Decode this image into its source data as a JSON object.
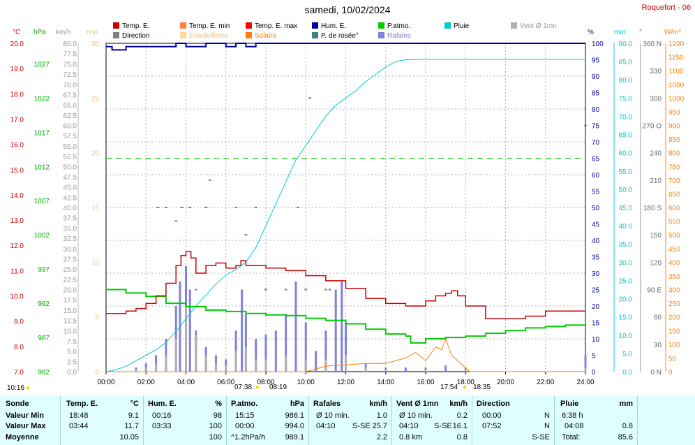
{
  "title": "samedi, 10/02/2024",
  "station": "Roquefort - 06",
  "legend": [
    {
      "label": "Temp. E.",
      "color": "#cc0000"
    },
    {
      "label": "Temp. E. min",
      "color": "#ff8040"
    },
    {
      "label": "Temp. E. max",
      "color": "#ff0000"
    },
    {
      "label": "Hum. E.",
      "color": "#0000a0"
    },
    {
      "label": "P.atmo.",
      "color": "#00cc00"
    },
    {
      "label": "Pluie",
      "color": "#00cccc"
    },
    {
      "label": "Vent Ø 1mn",
      "color": "#b0b0b0"
    },
    {
      "label": "Direction",
      "color": "#808080"
    },
    {
      "label": "Ensoleilleme",
      "color": "#ffd8a0"
    },
    {
      "label": "Solaire",
      "color": "#ff8000"
    },
    {
      "label": "P. de rosée°",
      "color": "#408080"
    },
    {
      "label": "Rafales",
      "color": "#8080e0"
    }
  ],
  "units": {
    "temp": "°C",
    "press": "hPa",
    "wind": "km/h",
    "min": "min",
    "hum": "%",
    "rain": "mm",
    "dir": "°",
    "solar": "W/m²"
  },
  "chart_data": {
    "type": "line",
    "xlabel": "",
    "x_ticks": [
      "00:00",
      "02:00",
      "04:00",
      "06:00",
      "08:00",
      "10:00",
      "12:00",
      "14:00",
      "16:00",
      "18:00",
      "20:00",
      "22:00",
      "24:00"
    ],
    "axes": {
      "temp_c": {
        "range": [
          7.0,
          20.0
        ],
        "ticks": [
          "7.0",
          "8.0",
          "9.0",
          "10.0",
          "11.0",
          "12.0",
          "13.0",
          "14.0",
          "15.0",
          "16.0",
          "17.0",
          "18.0",
          "19.0",
          "20.0"
        ]
      },
      "pressure_hpa": {
        "range": [
          982,
          1030
        ],
        "ticks": [
          "982",
          "987",
          "992",
          "997",
          "1002",
          "1007",
          "1012",
          "1017",
          "1022",
          "1027"
        ]
      },
      "wind_kmh": {
        "range": [
          0,
          80
        ],
        "step": 2.5
      },
      "sun_min": {
        "range": [
          0,
          30
        ],
        "ticks": [
          "0",
          "5",
          "10",
          "15",
          "20",
          "25",
          "30"
        ]
      },
      "humidity_pct": {
        "range": [
          0,
          100
        ],
        "step": 5
      },
      "rain_mm": {
        "range": [
          0,
          90
        ],
        "step": 5
      },
      "direction_deg": {
        "range": [
          0,
          360
        ],
        "ticks": [
          "0 N",
          "30",
          "60",
          "90 E",
          "120",
          "150",
          "180 S",
          "210",
          "240",
          "270 O",
          "300",
          "330",
          "360 N"
        ]
      },
      "solar_wm2": {
        "range": [
          0,
          1200
        ],
        "step": 50
      }
    },
    "series": [
      {
        "name": "Temp. E.",
        "axis": "temp_c",
        "x": [
          0,
          0.5,
          1,
          1.5,
          2,
          2.5,
          3,
          3.5,
          3.75,
          4,
          4.25,
          4.5,
          5,
          5.5,
          6,
          6.5,
          6.75,
          7,
          7.5,
          8,
          9,
          10,
          11,
          12,
          13,
          14,
          15,
          16,
          16.5,
          17,
          17.3,
          17.6,
          18,
          19,
          20,
          21,
          22,
          23,
          24
        ],
        "y": [
          9.3,
          9.3,
          9.4,
          9.5,
          9.7,
          10.0,
          10.5,
          11.2,
          11.6,
          11.75,
          11.5,
          10.9,
          11.2,
          11.3,
          11.1,
          11.2,
          11.4,
          11.2,
          11.2,
          11.1,
          11.0,
          10.8,
          10.6,
          10.3,
          9.9,
          9.7,
          9.6,
          9.8,
          10.0,
          10.1,
          10.2,
          10.0,
          9.6,
          9.1,
          9.1,
          9.2,
          9.4,
          9.4,
          9.4
        ]
      },
      {
        "name": "Hum. E.",
        "axis": "humidity_pct",
        "x": [
          0,
          0.3,
          1,
          2,
          3,
          3.5,
          4,
          5,
          6,
          6.5,
          7,
          7.5,
          8,
          10,
          12,
          14,
          16,
          18,
          20,
          22,
          24
        ],
        "y": [
          99,
          98,
          99,
          99,
          99,
          100,
          99,
          100,
          99,
          100,
          99,
          100,
          100,
          100,
          100,
          100,
          100,
          100,
          100,
          100,
          100
        ]
      },
      {
        "name": "P.atmo.",
        "axis": "pressure_hpa",
        "x": [
          0,
          1,
          2,
          3,
          4,
          5,
          6,
          7,
          8,
          9,
          10,
          11,
          12,
          13,
          14,
          15,
          15.25,
          16,
          17,
          18,
          19,
          20,
          21,
          22,
          23,
          24
        ],
        "y": [
          994.0,
          993.5,
          993.0,
          992.0,
          991.5,
          991.0,
          990.8,
          990.5,
          990.3,
          990.2,
          989.8,
          989.5,
          989.0,
          988.2,
          987.5,
          987.2,
          986.2,
          986.8,
          987.0,
          987.2,
          987.6,
          988.0,
          988.4,
          988.6,
          988.8,
          989.0
        ]
      },
      {
        "name": "Pluie",
        "axis": "rain_mm",
        "x": [
          0,
          0.5,
          1,
          1.5,
          2,
          2.5,
          3,
          3.5,
          4,
          4.5,
          5,
          5.5,
          6,
          6.5,
          7,
          7.5,
          8,
          8.5,
          9,
          9.5,
          10,
          10.5,
          11,
          11.5,
          12,
          12.5,
          13,
          13.5,
          14,
          14.5,
          15,
          16,
          18,
          20,
          24
        ],
        "y": [
          0,
          0.5,
          1.5,
          3,
          4.5,
          6,
          8,
          11,
          14.5,
          18,
          21,
          24,
          26.5,
          28,
          30,
          34,
          40,
          46,
          52,
          58,
          62,
          66,
          70,
          73,
          75,
          77,
          79.5,
          81.5,
          83.5,
          85,
          85.5,
          85.6,
          85.6,
          85.6,
          85.6
        ]
      },
      {
        "name": "Rafales",
        "axis": "wind_kmh",
        "x": [
          1.5,
          2,
          2.5,
          3,
          3.5,
          3.7,
          4,
          4.2,
          4.5,
          5,
          5.5,
          6,
          6.5,
          6.8,
          7,
          7.5,
          8,
          8.5,
          9,
          9.5,
          10,
          10.5,
          11,
          11.5,
          11.8,
          12,
          13,
          14,
          15,
          16,
          17,
          18,
          19,
          20,
          22,
          24
        ],
        "y": [
          1,
          2,
          4,
          8,
          16,
          22,
          25.7,
          20,
          10,
          6,
          4,
          3,
          10,
          20,
          14,
          8,
          9,
          10,
          14,
          22,
          12,
          5,
          10,
          20,
          22,
          12,
          2,
          1,
          1,
          1,
          1.5,
          1,
          0,
          0,
          0,
          4
        ]
      },
      {
        "name": "Vent Ø 1mn",
        "axis": "wind_kmh",
        "x": [
          1.5,
          2,
          2.5,
          3,
          3.5,
          4,
          4.5,
          5,
          5.5,
          6,
          6.5,
          7,
          7.5,
          8,
          9,
          10,
          11,
          12,
          13,
          14,
          16,
          18,
          20,
          24
        ],
        "y": [
          0.5,
          1,
          2,
          4,
          8,
          16.1,
          9,
          4,
          2,
          1.5,
          5,
          6,
          3,
          3,
          4,
          3,
          3,
          4,
          1,
          0.5,
          0.5,
          0.5,
          0,
          1
        ]
      },
      {
        "name": "Direction",
        "axis": "direction_deg",
        "x": [
          2.6,
          3,
          3.5,
          3.8,
          4.2,
          4.5,
          5,
          5.2,
          6.5,
          7,
          7.5,
          8,
          9,
          9.6,
          10,
          10.2,
          11,
          11.2,
          24
        ],
        "y": [
          180,
          180,
          165,
          180,
          180,
          90,
          180,
          210,
          180,
          150,
          180,
          90,
          90,
          180,
          90,
          300,
          90,
          90,
          270
        ]
      },
      {
        "name": "Solaire",
        "axis": "solar_wm2",
        "x": [
          0,
          10,
          10.5,
          11,
          12,
          13,
          14,
          15,
          15.5,
          16,
          16.5,
          16.8,
          17,
          17.3,
          17.6,
          17.9,
          18.2,
          24
        ],
        "y": [
          0,
          0,
          10,
          20,
          25,
          30,
          30,
          50,
          70,
          40,
          90,
          80,
          120,
          60,
          40,
          20,
          0,
          0
        ]
      }
    ],
    "reference_lines": [
      {
        "name": "dashed-green",
        "axis": "humidity_pct",
        "value": 65
      }
    ]
  },
  "sun": {
    "left_time": "10:16",
    "rise_time": "07:38",
    "rise2_time": "08:19",
    "set_time": "17:54",
    "set2_time": "18:35"
  },
  "stats": {
    "rows": [
      "Sonde",
      "Valeur Min",
      "Valeur Max",
      "Moyenne"
    ],
    "temp": {
      "title": "Temp. E.",
      "unit": "°C",
      "min_t": "18:48",
      "min_v": "9.1",
      "max_t": "03:44",
      "max_v": "11.7",
      "avg_v": "10.05"
    },
    "hum": {
      "title": "Hum. E.",
      "unit": "%",
      "min_t": "00:16",
      "min_v": "98",
      "max_t": "03:33",
      "max_v": "100",
      "avg_v": "100"
    },
    "press": {
      "title": "P.atmo.",
      "unit": "hPa",
      "min_t": "15:15",
      "min_v": "986.1",
      "max_t": "00:00",
      "max_v": "994.0",
      "avg_l": "^1.2hPa/h",
      "avg_v": "989.1"
    },
    "gust": {
      "title": "Rafales",
      "unit": "km/h",
      "min_t": "Ø 10 min.",
      "min_v": "1.0",
      "max_t": "04:10",
      "max_d": "S-SE",
      "max_v": "25.7",
      "avg_v": "2.2"
    },
    "wind": {
      "title": "Vent Ø 1mn",
      "unit": "km/h",
      "min_t": "Ø 10 min.",
      "min_v": "0.2",
      "max_t": "04:10",
      "max_d": "S-SE",
      "max_v": "16.1",
      "avg_l": "0.8 km",
      "avg_v": "0.8"
    },
    "dir": {
      "title": "Direction",
      "min_t": "00:00",
      "min_v": "N",
      "max_t": "07:52",
      "max_v": "N",
      "avg_v": "S-SE"
    },
    "rain": {
      "title": "Pluie",
      "unit": "mm",
      "min_t": "6:38 h",
      "max_t": "04:08",
      "max_v": "0.8",
      "avg_l": "Total:",
      "avg_v": "85.6"
    }
  }
}
